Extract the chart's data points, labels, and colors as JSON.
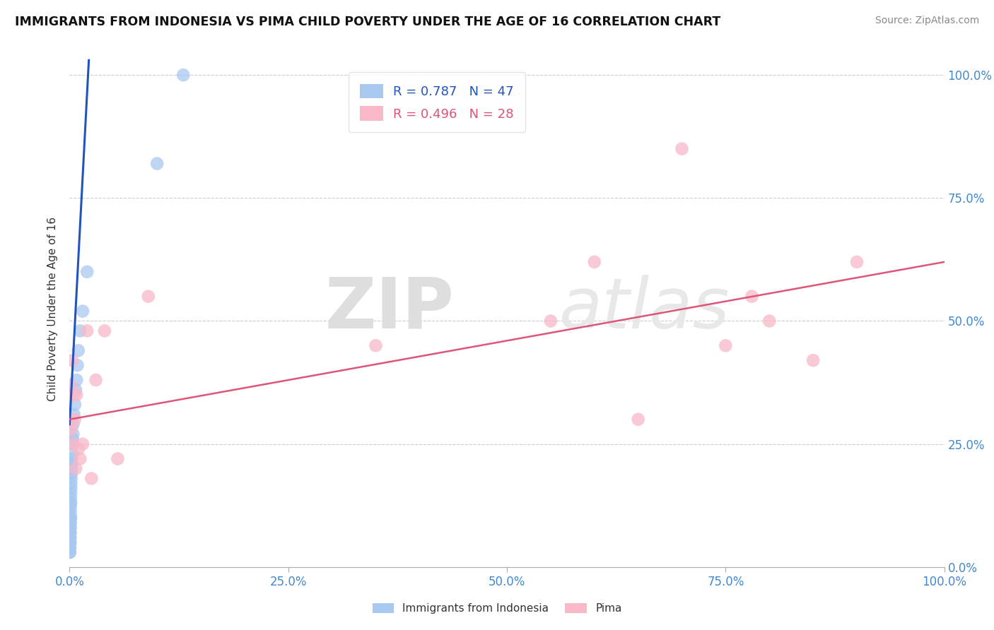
{
  "title": "IMMIGRANTS FROM INDONESIA VS PIMA CHILD POVERTY UNDER THE AGE OF 16 CORRELATION CHART",
  "source": "Source: ZipAtlas.com",
  "ylabel": "Child Poverty Under the Age of 16",
  "blue_label": "Immigrants from Indonesia",
  "pink_label": "Pima",
  "blue_R": 0.787,
  "blue_N": 47,
  "pink_R": 0.496,
  "pink_N": 28,
  "blue_color": "#a8c8f0",
  "pink_color": "#f8b8c8",
  "blue_line_color": "#2255bb",
  "pink_line_color": "#dd5577",
  "watermark_text": "ZIP",
  "watermark_text2": "atlas",
  "xlim": [
    0.0,
    1.0
  ],
  "ylim": [
    0.0,
    1.05
  ],
  "xticks": [
    0.0,
    0.25,
    0.5,
    0.75,
    1.0
  ],
  "yticks": [
    0.0,
    0.25,
    0.5,
    0.75,
    1.0
  ],
  "xtick_labels": [
    "0.0%",
    "25.0%",
    "50.0%",
    "75.0%",
    "100.0%"
  ],
  "ytick_labels": [
    "0.0%",
    "25.0%",
    "50.0%",
    "75.0%",
    "100.0%"
  ],
  "blue_x": [
    0.0002,
    0.0003,
    0.0003,
    0.0004,
    0.0004,
    0.0005,
    0.0005,
    0.0005,
    0.0006,
    0.0006,
    0.0007,
    0.0007,
    0.0008,
    0.0008,
    0.0009,
    0.0009,
    0.001,
    0.001,
    0.001,
    0.001,
    0.0011,
    0.0012,
    0.0013,
    0.0014,
    0.0015,
    0.0016,
    0.0018,
    0.002,
    0.002,
    0.0022,
    0.0025,
    0.003,
    0.003,
    0.0035,
    0.004,
    0.004,
    0.005,
    0.006,
    0.007,
    0.008,
    0.009,
    0.01,
    0.012,
    0.015,
    0.02,
    0.1,
    0.13
  ],
  "blue_y": [
    0.03,
    0.04,
    0.05,
    0.03,
    0.06,
    0.04,
    0.05,
    0.07,
    0.05,
    0.08,
    0.06,
    0.09,
    0.07,
    0.1,
    0.08,
    0.1,
    0.09,
    0.11,
    0.12,
    0.1,
    0.13,
    0.14,
    0.13,
    0.15,
    0.16,
    0.17,
    0.18,
    0.19,
    0.21,
    0.2,
    0.22,
    0.23,
    0.25,
    0.26,
    0.27,
    0.29,
    0.31,
    0.33,
    0.36,
    0.38,
    0.41,
    0.44,
    0.48,
    0.52,
    0.6,
    0.82,
    1.0
  ],
  "pink_x": [
    0.001,
    0.001,
    0.002,
    0.003,
    0.004,
    0.005,
    0.006,
    0.007,
    0.008,
    0.01,
    0.012,
    0.015,
    0.02,
    0.025,
    0.03,
    0.04,
    0.055,
    0.09,
    0.35,
    0.55,
    0.6,
    0.65,
    0.7,
    0.75,
    0.78,
    0.8,
    0.85,
    0.9
  ],
  "pink_y": [
    0.3,
    0.37,
    0.28,
    0.42,
    0.25,
    0.35,
    0.3,
    0.2,
    0.35,
    0.24,
    0.22,
    0.25,
    0.48,
    0.18,
    0.38,
    0.48,
    0.22,
    0.55,
    0.45,
    0.5,
    0.62,
    0.3,
    0.85,
    0.45,
    0.55,
    0.5,
    0.42,
    0.62
  ],
  "blue_line_x": [
    0.0,
    0.022
  ],
  "blue_line_y": [
    0.29,
    1.03
  ],
  "pink_line_x": [
    0.0,
    1.0
  ],
  "pink_line_y": [
    0.3,
    0.62
  ]
}
